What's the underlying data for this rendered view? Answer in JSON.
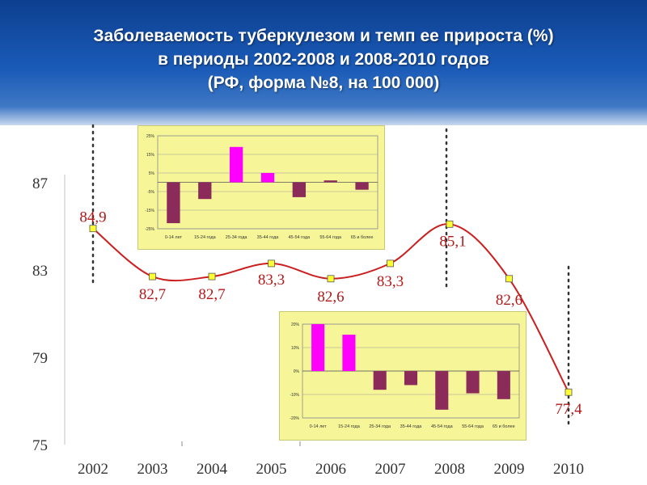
{
  "title": {
    "line1": "Заболеваемость туберкулезом и темп ее прироста (%)",
    "line2": "в периоды 2002-2008 и 2008-2010 годов",
    "line3": "(РФ, форма №8, на 100 000)"
  },
  "chart_data": [
    {
      "type": "line",
      "x": [
        "2002",
        "2003",
        "2004",
        "2005",
        "2006",
        "2007",
        "2008",
        "2009",
        "2010"
      ],
      "values": [
        84.9,
        82.7,
        82.7,
        83.3,
        82.6,
        83.3,
        85.1,
        82.6,
        77.4
      ],
      "data_labels": [
        "84,9",
        "82,7",
        "82,7",
        "83,3",
        "82,6",
        "83,3",
        "85,1",
        "82,6",
        "77,4"
      ],
      "y_ticks": [
        "87",
        "83",
        "79",
        "75"
      ],
      "ylim": [
        75,
        87
      ],
      "line_color": "#cc1f1f",
      "marker_color": "#ffff33",
      "label_color": "#b31919"
    },
    {
      "type": "bar",
      "categories": [
        "0-14 лет",
        "15-24 года",
        "25-34 года",
        "35-44 года",
        "45-54 года",
        "55-64 года",
        "65 и более"
      ],
      "values": [
        -22,
        -9,
        19,
        5,
        -8,
        1,
        -4
      ],
      "colors": [
        "#8b2b5a",
        "#8b2b5a",
        "#ff00ff",
        "#ff00ff",
        "#8b2b5a",
        "#8b2b5a",
        "#8b2b5a"
      ],
      "y_ticks": [
        "25%",
        "15%",
        "5%",
        "-5%",
        "-15%",
        "-25%"
      ],
      "ylim": [
        -25,
        25
      ],
      "background": "#f6f699"
    },
    {
      "type": "bar",
      "categories": [
        "0-14 лет",
        "15-24 года",
        "25-34 года",
        "35-44 года",
        "45-54 года",
        "55-64 года",
        "65 и более"
      ],
      "values": [
        20,
        15.5,
        -8,
        -6,
        -16.5,
        -9.5,
        -12
      ],
      "colors": [
        "#ff00ff",
        "#ff00ff",
        "#8b2b5a",
        "#8b2b5a",
        "#8b2b5a",
        "#8b2b5a",
        "#8b2b5a"
      ],
      "y_ticks": [
        "20%",
        "10%",
        "0%",
        "-10%",
        "-20%"
      ],
      "ylim": [
        -20,
        20
      ],
      "background": "#f6f699"
    }
  ]
}
